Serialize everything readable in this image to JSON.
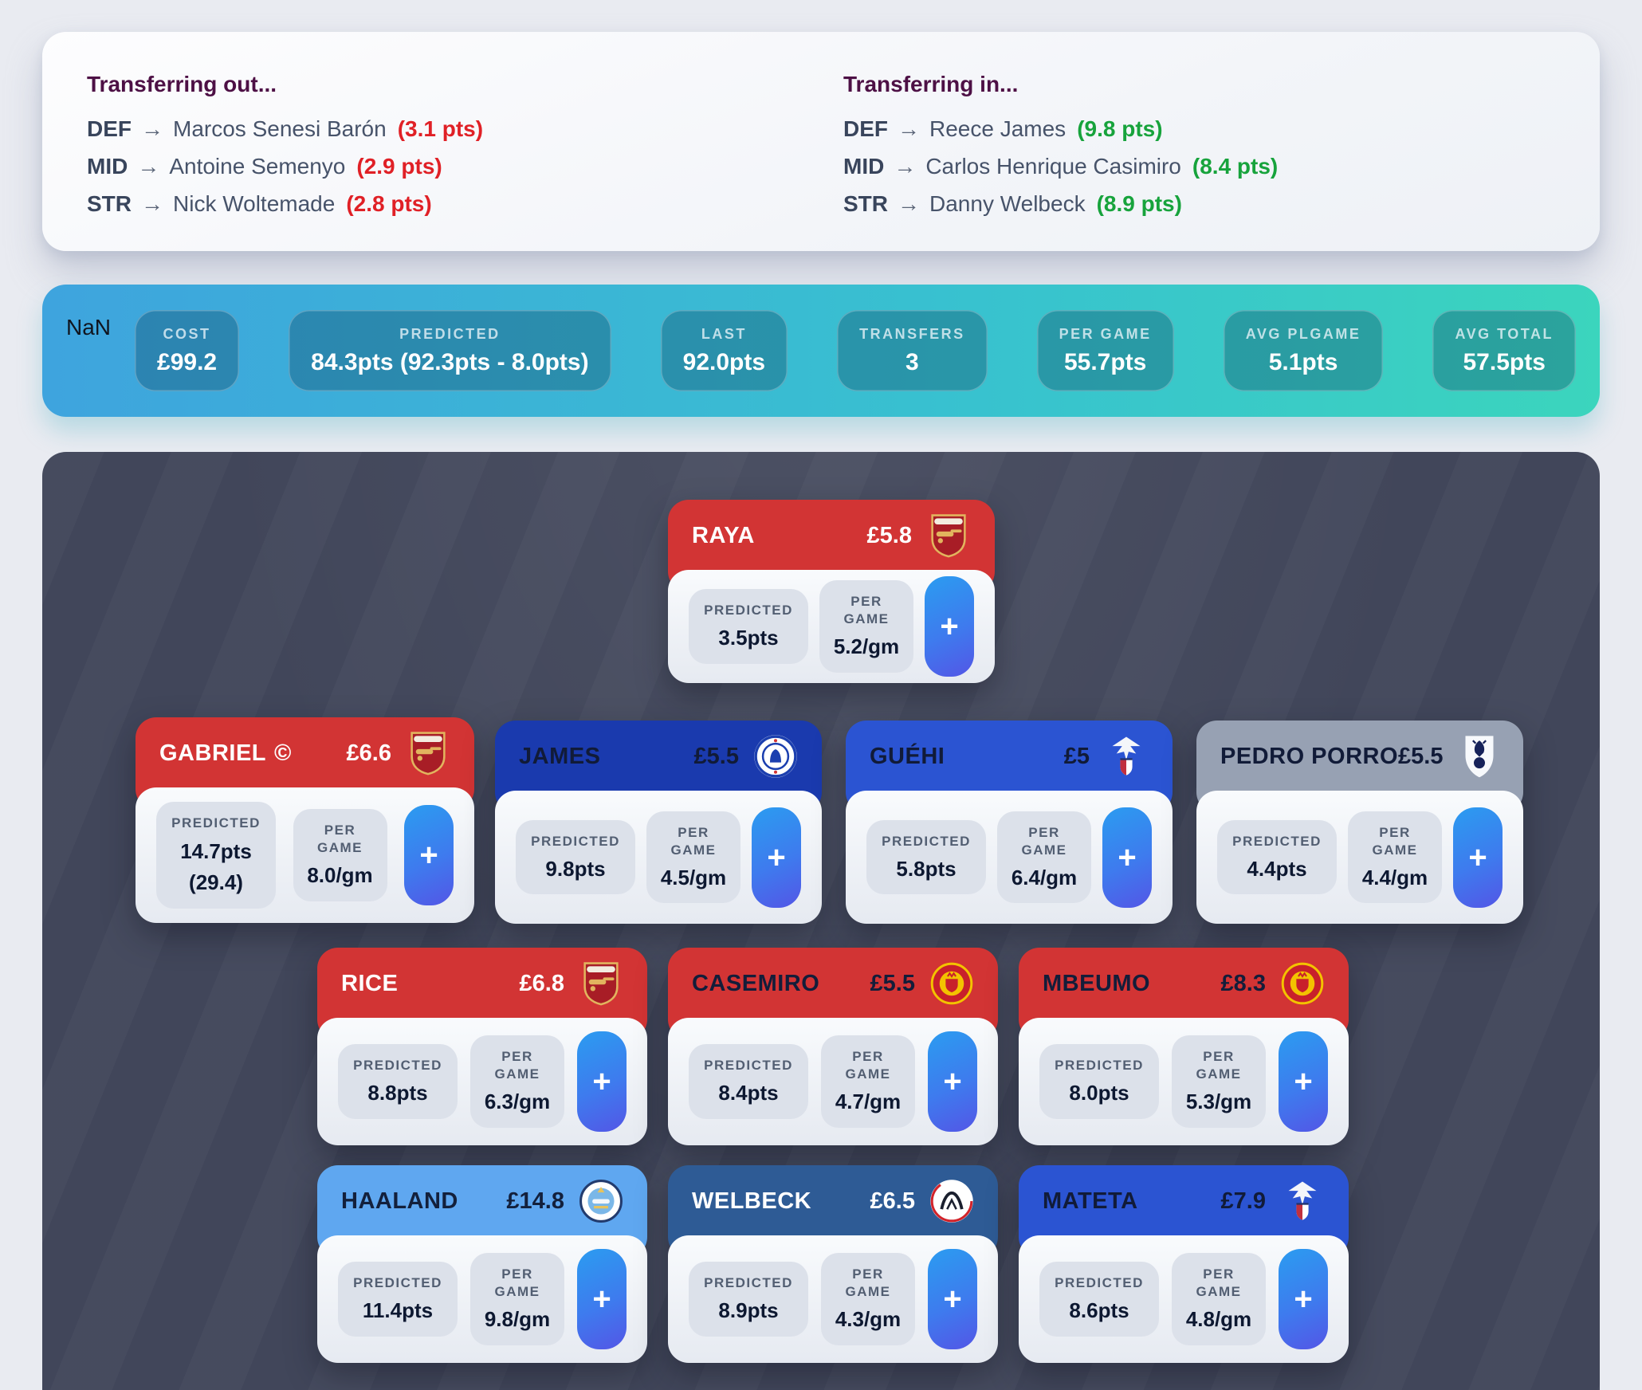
{
  "transfer_summary": {
    "out": {
      "title": "Transferring out...",
      "points_color": "#e02026",
      "rows": [
        {
          "position": "DEF",
          "arrow": "→",
          "player": "Marcos Senesi Barón",
          "points": "(3.1 pts)"
        },
        {
          "position": "MID",
          "arrow": "→",
          "player": "Antoine Semenyo",
          "points": "(2.9 pts)"
        },
        {
          "position": "STR",
          "arrow": "→",
          "player": "Nick Woltemade",
          "points": "(2.8 pts)"
        }
      ]
    },
    "in": {
      "title": "Transferring in...",
      "points_color": "#17a33c",
      "rows": [
        {
          "position": "DEF",
          "arrow": "→",
          "player": "Reece James",
          "points": "(9.8 pts)"
        },
        {
          "position": "MID",
          "arrow": "→",
          "player": "Carlos Henrique Casimiro",
          "points": "(8.4 pts)"
        },
        {
          "position": "STR",
          "arrow": "→",
          "player": "Danny Welbeck",
          "points": "(8.9 pts)"
        }
      ]
    }
  },
  "stats_bar": {
    "prefix": "NaN",
    "gradient_left": "#3ea4de",
    "gradient_right": "#3bd5bd",
    "items": [
      {
        "label": "COST",
        "value": "£99.2"
      },
      {
        "label": "PREDICTED",
        "value": "84.3pts (92.3pts - 8.0pts)"
      },
      {
        "label": "LAST",
        "value": "92.0pts"
      },
      {
        "label": "TRANSFERS",
        "value": "3"
      },
      {
        "label": "PER GAME",
        "value": "55.7pts"
      },
      {
        "label": "AVG PLGAME",
        "value": "5.1pts"
      },
      {
        "label": "AVG TOTAL",
        "value": "57.5pts"
      }
    ]
  },
  "card_labels": {
    "predicted": "PREDICTED",
    "per_game": "PER GAME",
    "add": "+"
  },
  "teams": {
    "arsenal": {
      "bg": "#d23434",
      "text": "#ffffff"
    },
    "chelsea": {
      "bg": "#1a3aae",
      "text": "#111b38"
    },
    "crystal-palace": {
      "bg": "#2b54d2",
      "text": "#111b38"
    },
    "spurs": {
      "bg": "#97a1b3",
      "text": "#111b38"
    },
    "man-utd": {
      "bg": "#d23434",
      "text": "#131d3a"
    },
    "man-city": {
      "bg": "#5fa7f0",
      "text": "#13203c"
    },
    "ajax": {
      "bg": "#2e5b95",
      "text": "#ffffff"
    }
  },
  "pitch": {
    "players": [
      {
        "name": "RAYA",
        "price": "£5.8",
        "team": "arsenal",
        "predicted": "3.5pts",
        "per_game": "5.2/gm"
      },
      {
        "name": "GABRIEL",
        "captain_mark": "©",
        "price": "£6.6",
        "team": "arsenal",
        "predicted": "14.7pts",
        "predicted_extra": "(29.4)",
        "per_game": "8.0/gm"
      },
      {
        "name": "JAMES",
        "price": "£5.5",
        "team": "chelsea",
        "predicted": "9.8pts",
        "per_game": "4.5/gm"
      },
      {
        "name": "GUÉHI",
        "price": "£5",
        "team": "crystal-palace",
        "predicted": "5.8pts",
        "per_game": "6.4/gm"
      },
      {
        "name": "PEDRO PORRO",
        "price": "£5.5",
        "team": "spurs",
        "predicted": "4.4pts",
        "per_game": "4.4/gm"
      },
      {
        "name": "RICE",
        "price": "£6.8",
        "team": "arsenal",
        "predicted": "8.8pts",
        "per_game": "6.3/gm"
      },
      {
        "name": "CASEMIRO",
        "price": "£5.5",
        "team": "man-utd",
        "predicted": "8.4pts",
        "per_game": "4.7/gm"
      },
      {
        "name": "MBEUMO",
        "price": "£8.3",
        "team": "man-utd",
        "predicted": "8.0pts",
        "per_game": "5.3/gm"
      },
      {
        "name": "HAALAND",
        "price": "£14.8",
        "team": "man-city",
        "predicted": "11.4pts",
        "per_game": "9.8/gm"
      },
      {
        "name": "WELBECK",
        "price": "£6.5",
        "team": "ajax",
        "predicted": "8.9pts",
        "per_game": "4.3/gm"
      },
      {
        "name": "MATETA",
        "price": "£7.9",
        "team": "crystal-palace",
        "predicted": "8.6pts",
        "per_game": "4.8/gm"
      }
    ]
  }
}
